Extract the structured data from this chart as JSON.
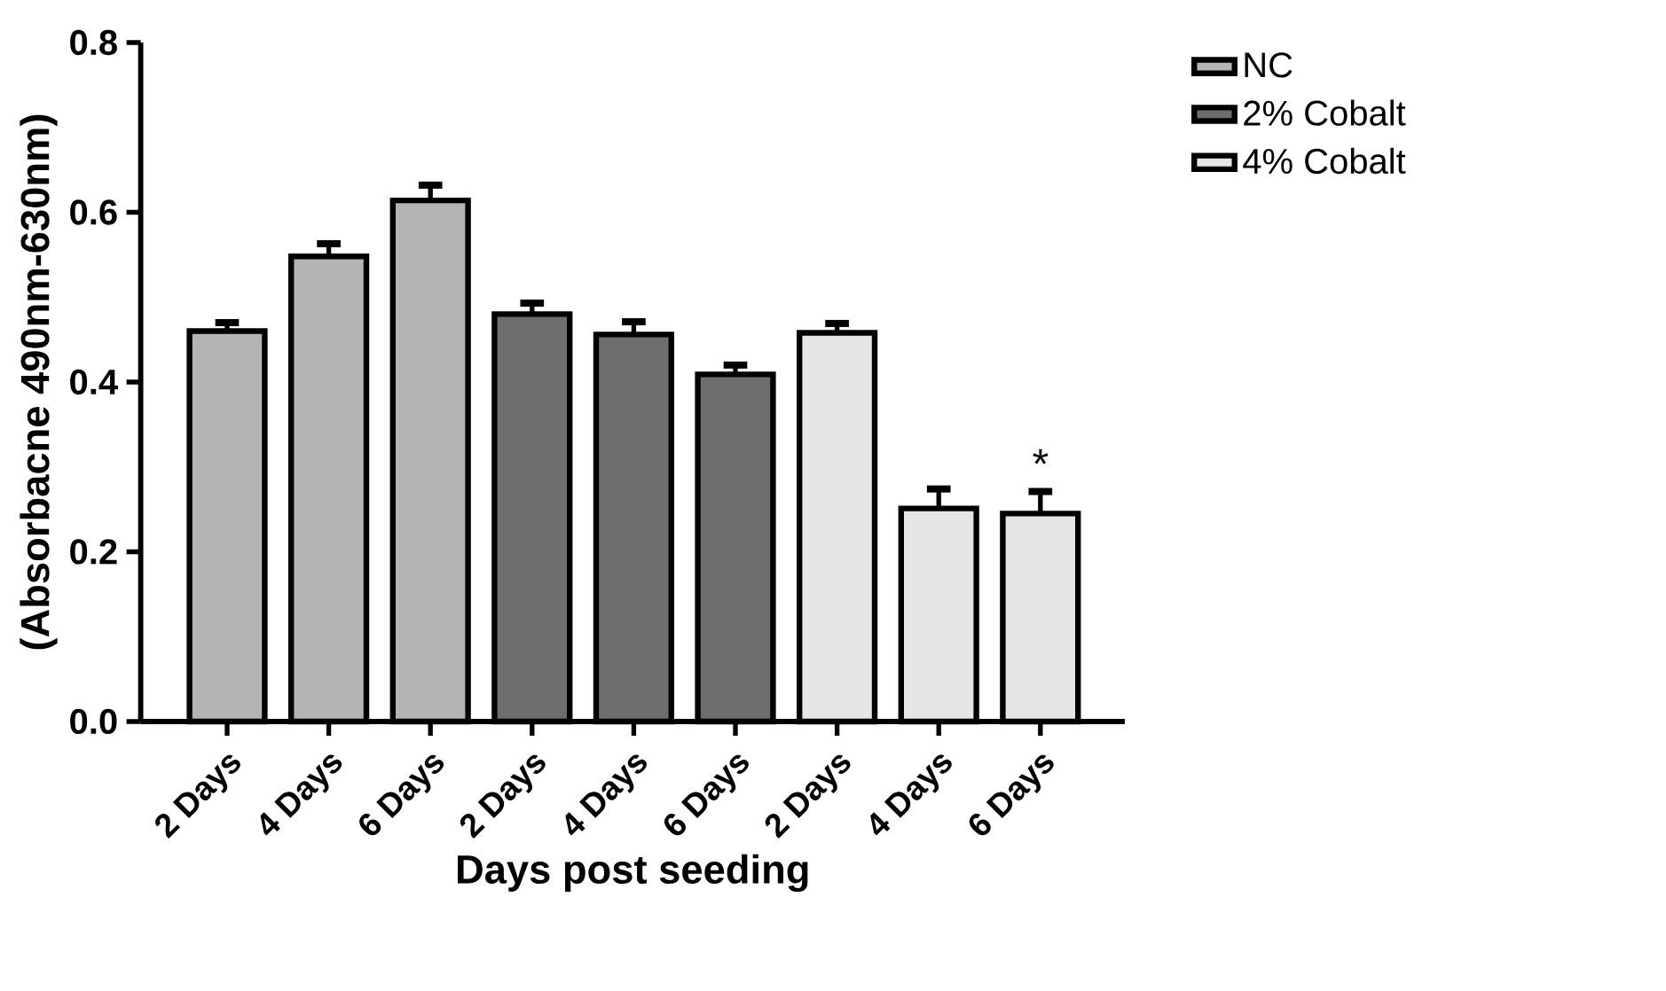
{
  "chart_data": {
    "type": "bar",
    "xlabel": "Days post seeding",
    "ylabel": "(Absorbacne 490nm-630nm)",
    "categories": [
      "2 Days",
      "4 Days",
      "6 Days",
      "2 Days",
      "4 Days",
      "6 Days",
      "2 Days",
      "4 Days",
      "6 Days"
    ],
    "series": [
      {
        "name": "NC",
        "color": "#b4b4b4",
        "values": [
          0.46,
          0.548,
          0.614,
          null,
          null,
          null,
          null,
          null,
          null
        ],
        "errors": [
          [
            0.46,
            0.47
          ],
          [
            0.548,
            0.563
          ],
          [
            0.614,
            0.632
          ],
          null,
          null,
          null,
          null,
          null,
          null
        ]
      },
      {
        "name": "2% Cobalt",
        "color": "#6e6e6e",
        "values": [
          null,
          null,
          null,
          0.48,
          0.456,
          0.409,
          null,
          null,
          null
        ],
        "errors": [
          null,
          null,
          null,
          [
            0.48,
            0.493
          ],
          [
            0.456,
            0.471
          ],
          [
            0.409,
            0.42
          ],
          null,
          null,
          null
        ]
      },
      {
        "name": "4% Cobalt",
        "color": "#e6e6e6",
        "values": [
          null,
          null,
          null,
          null,
          null,
          null,
          0.458,
          0.251,
          0.245
        ],
        "errors": [
          null,
          null,
          null,
          null,
          null,
          null,
          [
            0.458,
            0.469
          ],
          [
            0.251,
            0.274
          ],
          [
            0.245,
            0.271
          ]
        ]
      }
    ],
    "ylim": [
      0,
      0.8
    ],
    "yticks": [
      {
        "value": 0,
        "label": "0.0"
      },
      {
        "value": 0.2,
        "label": "0.2"
      },
      {
        "value": 0.4,
        "label": "0.4"
      },
      {
        "value": 0.6,
        "label": "0.6"
      },
      {
        "value": 0.8,
        "label": "0.8"
      }
    ],
    "annotations": [
      "*"
    ],
    "legend": "top right",
    "grid": false
  }
}
